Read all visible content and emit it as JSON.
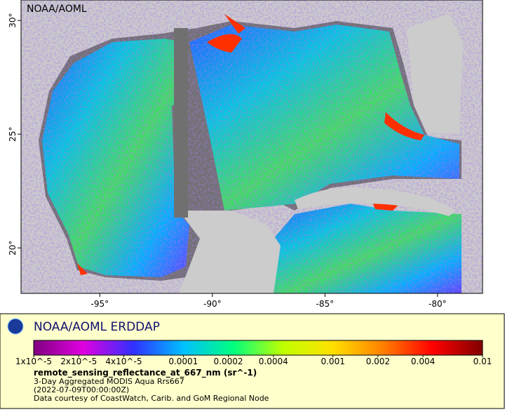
{
  "map": {
    "type": "map",
    "corner_label": "NOAA/AOML",
    "xlim": [
      -98.5,
      -78
    ],
    "ylim": [
      18,
      30.9
    ],
    "xticks": [
      {
        "value": -95,
        "label": "-95°"
      },
      {
        "value": -90,
        "label": "-90°"
      },
      {
        "value": -85,
        "label": "-85°"
      },
      {
        "value": -80,
        "label": "-80°"
      }
    ],
    "yticks": [
      {
        "value": 20,
        "label": "20°"
      },
      {
        "value": 25,
        "label": "25°"
      },
      {
        "value": 30,
        "label": "30°"
      }
    ]
  },
  "legend": {
    "brand": "NOAA/AOML ERDDAP",
    "scale": "log",
    "colorbar_lim": [
      1e-05,
      0.01
    ],
    "colorbar_colors": [
      "#800080",
      "#e000e0",
      "#3030ff",
      "#00c0ff",
      "#00ff80",
      "#c0ff00",
      "#ffe000",
      "#ff8000",
      "#ff0000",
      "#800000"
    ],
    "colorbar_ticks": [
      {
        "value": 1e-05,
        "label": "1x10^-5"
      },
      {
        "value": 2e-05,
        "label": "2x10^-5"
      },
      {
        "value": 4e-05,
        "label": "4x10^-5"
      },
      0.0001,
      0.0002,
      0.0004,
      0.001,
      0.002,
      0.004,
      0.01
    ],
    "variable": "remote_sensing_reflectance_at_667_nm (sr^-1)",
    "lines": [
      "3-Day Aggregated MODIS Aqua Rrs667",
      "(2022-07-09T00:00:00Z)",
      "Data courtesy of CoastWatch, Carib. and GoM Regional Node"
    ]
  }
}
